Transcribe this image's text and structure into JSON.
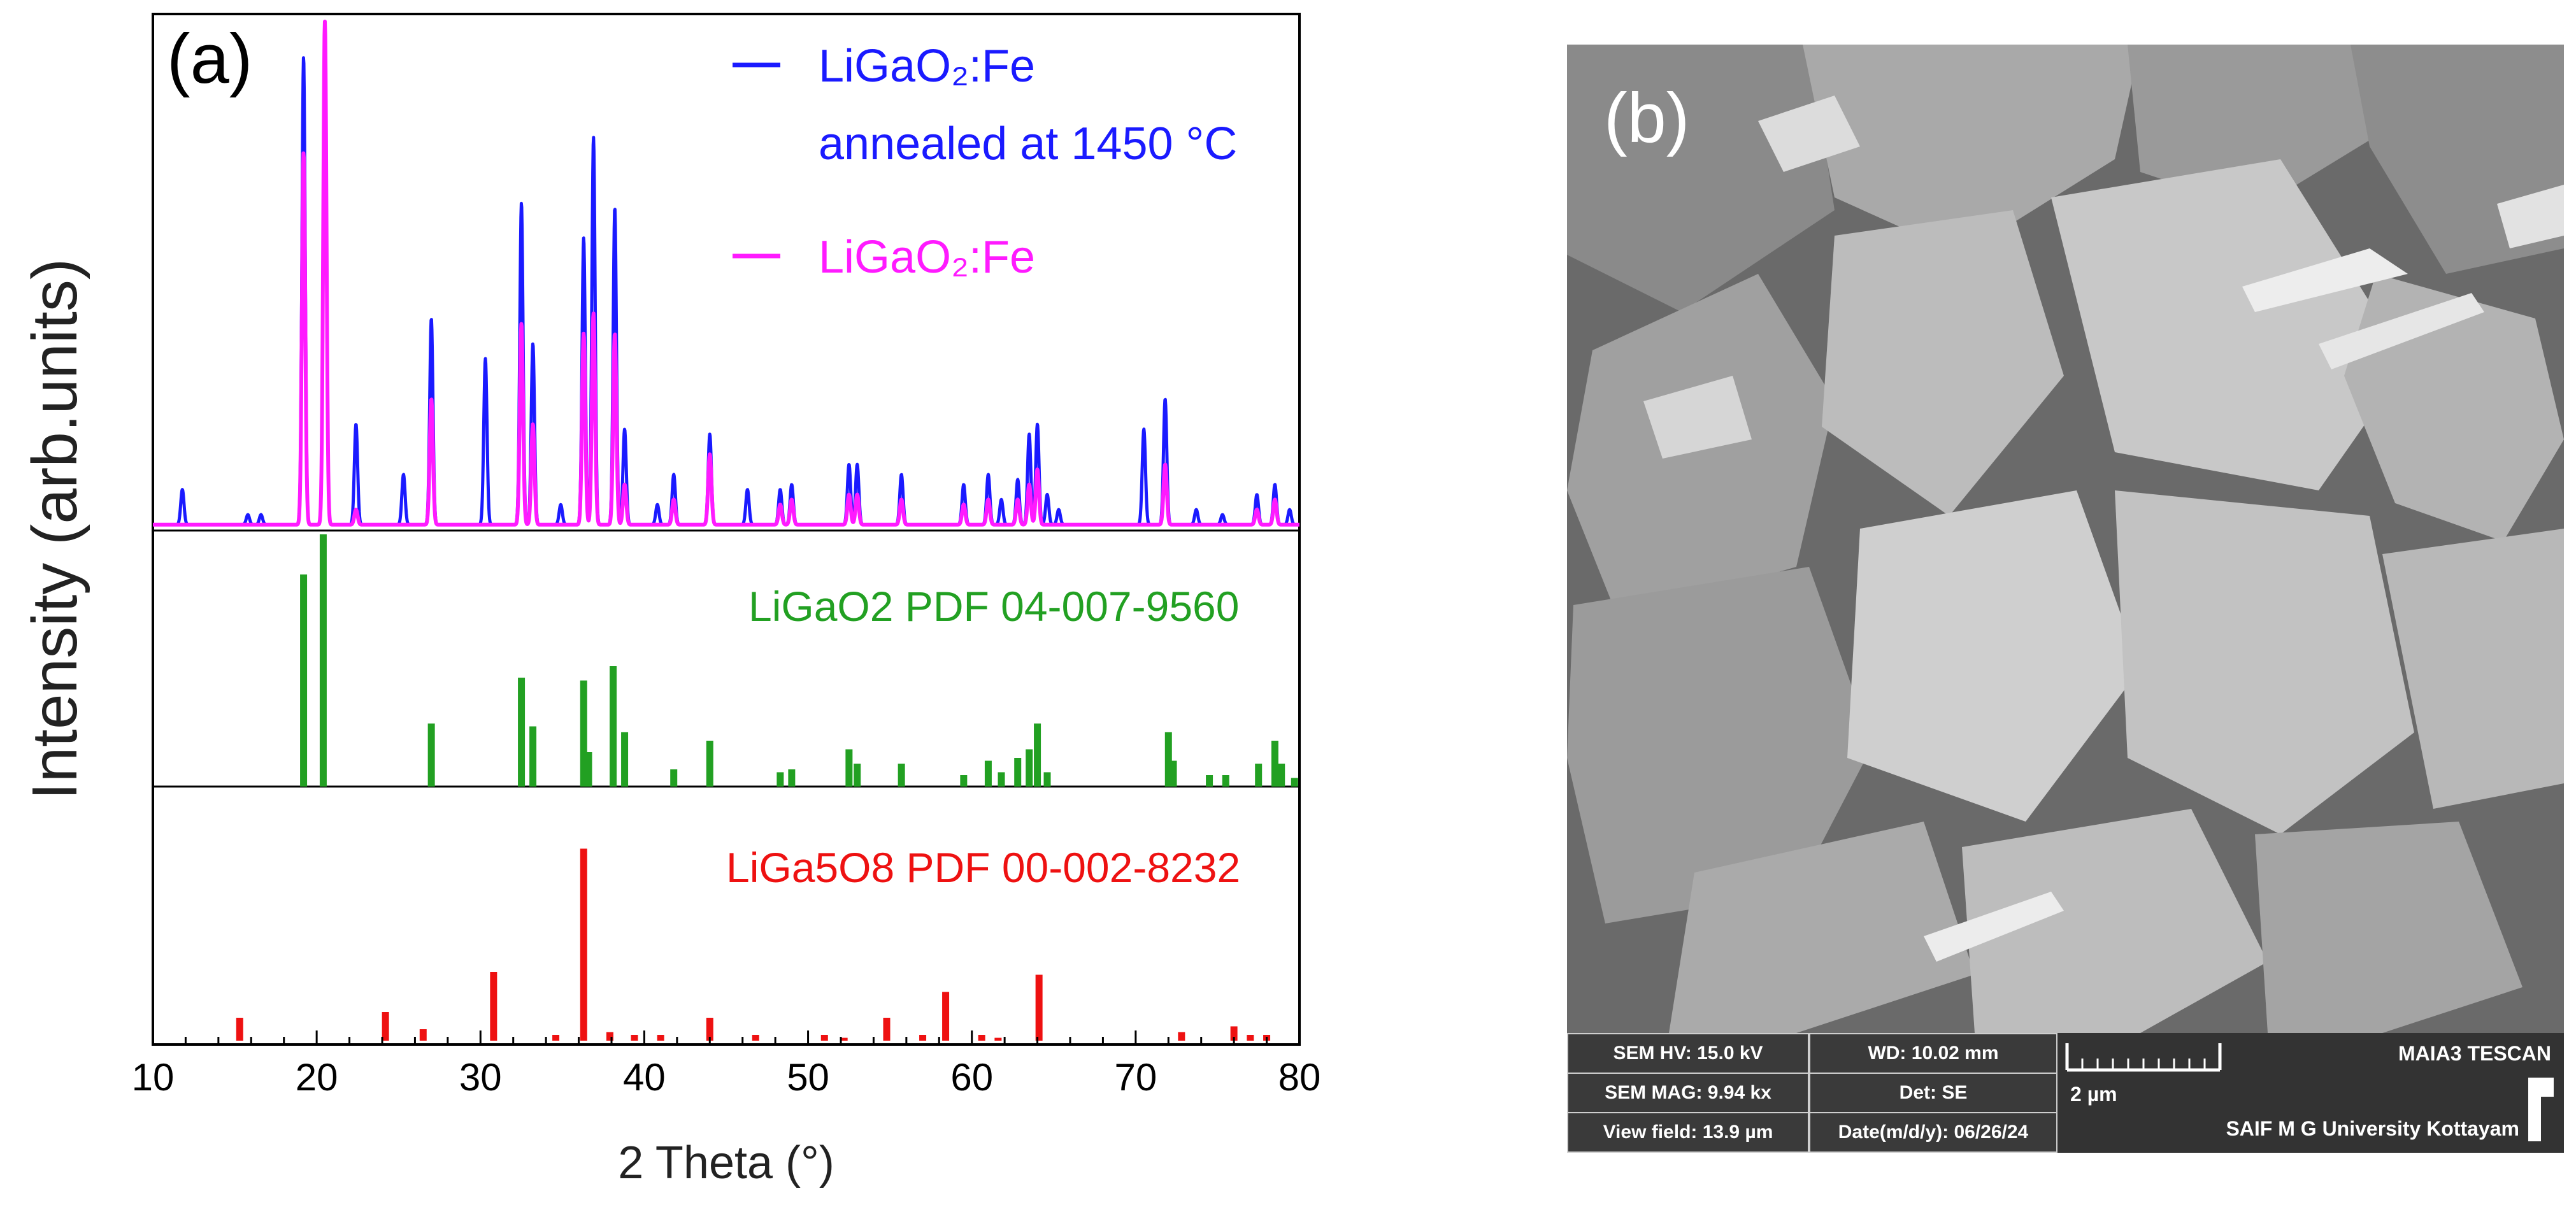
{
  "panel_a_label": "(a)",
  "panel_b_label": "(b)",
  "chart_data": {
    "type": "line",
    "xlabel": "2 Theta (°)",
    "ylabel": "Intensity (arb.units)",
    "xlim": [
      10,
      80
    ],
    "xticks": [
      10,
      20,
      30,
      40,
      50,
      60,
      70,
      80
    ],
    "series": [
      {
        "name": "LiGaO2:Fe annealed at 1450 °C",
        "legend_lines": [
          "LiGaO₂:Fe",
          "annealed at 1450 °C"
        ],
        "color": "#1a1aff",
        "peaks": [
          [
            11.8,
            0.07
          ],
          [
            15.8,
            0.02
          ],
          [
            16.6,
            0.02
          ],
          [
            19.2,
            0.93
          ],
          [
            20.5,
            0.92
          ],
          [
            22.4,
            0.2
          ],
          [
            25.3,
            0.1
          ],
          [
            27.0,
            0.41
          ],
          [
            30.3,
            0.33
          ],
          [
            32.5,
            0.64
          ],
          [
            33.2,
            0.36
          ],
          [
            34.9,
            0.04
          ],
          [
            36.3,
            0.57
          ],
          [
            36.9,
            0.77
          ],
          [
            38.2,
            0.63
          ],
          [
            38.8,
            0.19
          ],
          [
            40.8,
            0.04
          ],
          [
            41.8,
            0.1
          ],
          [
            44.0,
            0.18
          ],
          [
            46.3,
            0.07
          ],
          [
            48.3,
            0.07
          ],
          [
            49.0,
            0.08
          ],
          [
            52.5,
            0.12
          ],
          [
            53.0,
            0.12
          ],
          [
            55.7,
            0.1
          ],
          [
            59.5,
            0.08
          ],
          [
            61.0,
            0.1
          ],
          [
            61.8,
            0.05
          ],
          [
            62.8,
            0.09
          ],
          [
            63.5,
            0.18
          ],
          [
            64.0,
            0.2
          ],
          [
            64.6,
            0.06
          ],
          [
            65.3,
            0.03
          ],
          [
            70.5,
            0.19
          ],
          [
            71.8,
            0.25
          ],
          [
            73.7,
            0.03
          ],
          [
            75.3,
            0.02
          ],
          [
            77.4,
            0.06
          ],
          [
            78.5,
            0.08
          ],
          [
            79.4,
            0.03
          ]
        ]
      },
      {
        "name": "LiGaO2:Fe",
        "legend_lines": [
          "LiGaO₂:Fe"
        ],
        "color": "#ff1aff",
        "peaks": [
          [
            19.2,
            0.74
          ],
          [
            20.5,
            1.0
          ],
          [
            22.4,
            0.03
          ],
          [
            27.0,
            0.25
          ],
          [
            32.5,
            0.4
          ],
          [
            33.2,
            0.2
          ],
          [
            36.3,
            0.38
          ],
          [
            36.9,
            0.42
          ],
          [
            38.2,
            0.38
          ],
          [
            38.8,
            0.08
          ],
          [
            41.8,
            0.05
          ],
          [
            44.0,
            0.14
          ],
          [
            48.3,
            0.04
          ],
          [
            49.0,
            0.05
          ],
          [
            52.5,
            0.06
          ],
          [
            53.0,
            0.06
          ],
          [
            55.7,
            0.05
          ],
          [
            59.5,
            0.04
          ],
          [
            61.0,
            0.05
          ],
          [
            62.8,
            0.05
          ],
          [
            63.5,
            0.08
          ],
          [
            64.0,
            0.11
          ],
          [
            71.8,
            0.12
          ],
          [
            77.4,
            0.03
          ],
          [
            78.5,
            0.05
          ]
        ]
      }
    ],
    "references": [
      {
        "name": "LiGaO2 PDF 04-007-9560",
        "color": "#22a022",
        "sticks": [
          [
            19.2,
            0.74
          ],
          [
            20.4,
            0.88
          ],
          [
            27.0,
            0.22
          ],
          [
            32.5,
            0.38
          ],
          [
            33.2,
            0.21
          ],
          [
            36.3,
            0.37
          ],
          [
            36.6,
            0.12
          ],
          [
            38.1,
            0.42
          ],
          [
            38.8,
            0.19
          ],
          [
            41.8,
            0.06
          ],
          [
            44.0,
            0.16
          ],
          [
            48.3,
            0.05
          ],
          [
            49.0,
            0.06
          ],
          [
            52.5,
            0.13
          ],
          [
            53.0,
            0.08
          ],
          [
            55.7,
            0.08
          ],
          [
            59.5,
            0.04
          ],
          [
            61.0,
            0.09
          ],
          [
            61.8,
            0.05
          ],
          [
            62.8,
            0.1
          ],
          [
            63.5,
            0.13
          ],
          [
            64.0,
            0.22
          ],
          [
            64.6,
            0.05
          ],
          [
            72.0,
            0.19
          ],
          [
            72.3,
            0.09
          ],
          [
            74.5,
            0.04
          ],
          [
            75.5,
            0.04
          ],
          [
            77.5,
            0.08
          ],
          [
            78.5,
            0.16
          ],
          [
            78.9,
            0.08
          ],
          [
            79.7,
            0.03
          ]
        ]
      },
      {
        "name": "LiGa5O8 PDF 00-002-8232",
        "color": "#ee1111",
        "sticks": [
          [
            15.3,
            0.08
          ],
          [
            24.2,
            0.1
          ],
          [
            26.5,
            0.04
          ],
          [
            30.8,
            0.24
          ],
          [
            34.6,
            0.02
          ],
          [
            36.3,
            0.67
          ],
          [
            37.9,
            0.03
          ],
          [
            39.4,
            0.02
          ],
          [
            41.0,
            0.02
          ],
          [
            44.0,
            0.08
          ],
          [
            46.8,
            0.02
          ],
          [
            51.0,
            0.02
          ],
          [
            52.2,
            0.01
          ],
          [
            54.8,
            0.08
          ],
          [
            57.0,
            0.02
          ],
          [
            58.4,
            0.17
          ],
          [
            60.6,
            0.02
          ],
          [
            61.6,
            0.01
          ],
          [
            64.1,
            0.23
          ],
          [
            72.8,
            0.03
          ],
          [
            76.0,
            0.05
          ],
          [
            77.0,
            0.02
          ],
          [
            78.0,
            0.02
          ]
        ]
      }
    ],
    "legend_position": "top-right"
  },
  "sem": {
    "hv": "SEM HV: 15.0 kV",
    "wd": "WD: 10.02 mm",
    "mag": "SEM MAG: 9.94 kx",
    "det": "Det: SE",
    "view_field": "View field: 13.9 µm",
    "date": "Date(m/d/y): 06/26/24",
    "scale_label": "2 µm",
    "instrument": "MAIA3 TESCAN",
    "lab": "SAIF M G University Kottayam"
  }
}
